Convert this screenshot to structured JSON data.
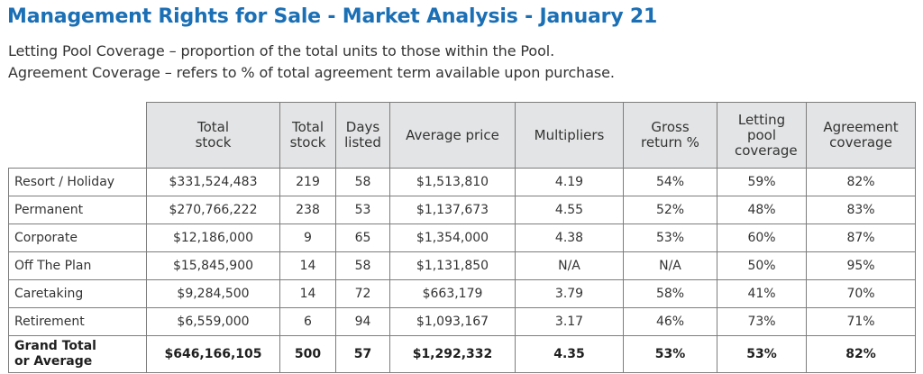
{
  "title": "Management Rights for Sale - Market Analysis - January 21",
  "notes": [
    "Letting Pool Coverage – proportion of the total units to those within the Pool.",
    "Agreement Coverage – refers to % of total agreement term available upon purchase."
  ],
  "table": {
    "headers": [
      "Total stock",
      "Total stock",
      "Days listed",
      "Average price",
      "Multipliers",
      "Gross return %",
      "Letting pool coverage",
      "Agreement coverage"
    ],
    "rows": [
      {
        "label": "Resort / Holiday",
        "cells": [
          "$331,524,483",
          "219",
          "58",
          "$1,513,810",
          "4.19",
          "54%",
          "59%",
          "82%"
        ]
      },
      {
        "label": "Permanent",
        "cells": [
          "$270,766,222",
          "238",
          "53",
          "$1,137,673",
          "4.55",
          "52%",
          "48%",
          "83%"
        ]
      },
      {
        "label": "Corporate",
        "cells": [
          "$12,186,000",
          "9",
          "65",
          "$1,354,000",
          "4.38",
          "53%",
          "60%",
          "87%"
        ]
      },
      {
        "label": "Off The Plan",
        "cells": [
          "$15,845,900",
          "14",
          "58",
          "$1,131,850",
          "N/A",
          "N/A",
          "50%",
          "95%"
        ]
      },
      {
        "label": "Caretaking",
        "cells": [
          "$9,284,500",
          "14",
          "72",
          "$663,179",
          "3.79",
          "58%",
          "41%",
          "70%"
        ]
      },
      {
        "label": "Retirement",
        "cells": [
          "$6,559,000",
          "6",
          "94",
          "$1,093,167",
          "3.17",
          "46%",
          "73%",
          "71%"
        ]
      }
    ],
    "total": {
      "label": "Grand Total or Average",
      "cells": [
        "$646,166,105",
        "500",
        "57",
        "$1,292,332",
        "4.35",
        "53%",
        "53%",
        "82%"
      ]
    }
  }
}
